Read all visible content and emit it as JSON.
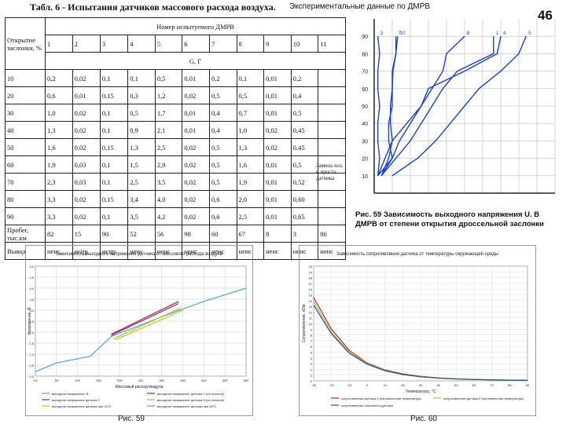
{
  "table_title": "Табл. 6 - Испытания датчиков массового расхода воздуха.",
  "page_number": "46",
  "dmrv_header": "Номер испытуемого ДМРВ",
  "opening_header": "Открытие заслонки, %",
  "g_header": "G, Г",
  "sensor_numbers": [
    "1",
    "2",
    "3",
    "4",
    "5",
    "6",
    "7",
    "8",
    "9",
    "10",
    "11"
  ],
  "rows": [
    {
      "open": "10",
      "v": [
        "0,2",
        "0,02",
        "0,1",
        "0,1",
        "0,5",
        "0,01",
        "0,2",
        "0,1",
        "0,01",
        "0,2",
        ""
      ]
    },
    {
      "open": "20",
      "v": [
        "0,6",
        "0,01",
        "0,15",
        "0,3",
        "1,2",
        "0,02",
        "0,5",
        "0,5",
        "0,01",
        "0,4",
        ""
      ]
    },
    {
      "open": "30",
      "v": [
        "1,0",
        "0,02",
        "0,1",
        "0,5",
        "1,7",
        "0,01",
        "0,4",
        "0,7",
        "0,01",
        "0,5",
        ""
      ]
    },
    {
      "open": "40",
      "v": [
        "1,3",
        "0,02",
        "0,1",
        "0,9",
        "2,1",
        "0,01",
        "0,4",
        "1,0",
        "0,02",
        "0,45",
        ""
      ]
    },
    {
      "open": "50",
      "v": [
        "1,6",
        "0,02",
        "0,15",
        "1,3",
        "2,5",
        "0,02",
        "0,5",
        "1,3",
        "0,02",
        "0,45",
        ""
      ]
    },
    {
      "open": "60",
      "v": [
        "1,9",
        "0,03",
        "0,1",
        "1,5",
        "2,9",
        "0,02",
        "0,5",
        "1,6",
        "0,01",
        "0,5",
        ""
      ]
    },
    {
      "open": "70",
      "v": [
        "2,3",
        "0,03",
        "0,1",
        "2,5",
        "3,5",
        "0,02",
        "0,5",
        "1,9",
        "0,01",
        "0,52",
        ""
      ]
    },
    {
      "open": "80",
      "v": [
        "3,3",
        "0,02",
        "0,15",
        "3,4",
        "4,0",
        "0,02",
        "0,6",
        "2,0",
        "0,01",
        "0,60",
        ""
      ]
    },
    {
      "open": "90",
      "v": [
        "3,3",
        "0,02",
        "0,1",
        "3,5",
        "4,2",
        "0,02",
        "0,6",
        "2,5",
        "0,01",
        "0,65",
        ""
      ]
    }
  ],
  "mileage_label": "Пробег, тыс.км",
  "mileage_values": [
    "82",
    "15",
    "90",
    "52",
    "56",
    "98",
    "60",
    "67",
    "8",
    "3",
    "86"
  ],
  "output_label": "Вывод",
  "output_values": [
    "неис",
    "испр",
    "испр",
    "неис",
    "неис",
    "неис",
    "неис",
    "неис",
    "неис",
    "неис",
    "неис"
  ],
  "side_note": "Замена хол. и проста датчика",
  "exp_title": "Экспериментальные данные по ДМРВ",
  "fig59_caption": "Рис. 59 Зависимость выходного напряжения U. В ДМРВ от степени открытия дроссельной заслонки",
  "fig_left_label": "Рис. 59",
  "fig_right_label": "Рис. 60",
  "chart_data": [
    {
      "type": "line",
      "title": "Экспериментальные данные по ДМРВ",
      "xlabel": "",
      "ylabel": "",
      "y_ticks": [
        10,
        20,
        30,
        40,
        50,
        60,
        70,
        80,
        90
      ],
      "ylim": [
        0,
        100
      ],
      "xlim": [
        0,
        5
      ],
      "series": [
        {
          "name": "1",
          "x": [
            0.2,
            0.6,
            1.0,
            1.3,
            1.6,
            1.9,
            2.3,
            3.3,
            3.3
          ],
          "y": [
            10,
            20,
            30,
            40,
            50,
            60,
            70,
            80,
            90
          ]
        },
        {
          "name": "3",
          "x": [
            0.1,
            0.15,
            0.1,
            0.1,
            0.15,
            0.1,
            0.1,
            0.15,
            0.1
          ],
          "y": [
            10,
            20,
            30,
            40,
            50,
            60,
            70,
            80,
            90
          ]
        },
        {
          "name": "4",
          "x": [
            0.1,
            0.3,
            0.5,
            0.9,
            1.3,
            1.5,
            2.5,
            3.4,
            3.5
          ],
          "y": [
            10,
            20,
            30,
            40,
            50,
            60,
            70,
            80,
            90
          ]
        },
        {
          "name": "5",
          "x": [
            0.5,
            1.2,
            1.7,
            2.1,
            2.5,
            2.9,
            3.5,
            4.0,
            4.2
          ],
          "y": [
            10,
            20,
            30,
            40,
            50,
            60,
            70,
            80,
            90
          ]
        },
        {
          "name": "7",
          "x": [
            0.2,
            0.5,
            0.4,
            0.4,
            0.5,
            0.5,
            0.5,
            0.6,
            0.6
          ],
          "y": [
            10,
            20,
            30,
            40,
            50,
            60,
            70,
            80,
            90
          ]
        },
        {
          "name": "8",
          "x": [
            0.1,
            0.5,
            0.7,
            1.0,
            1.3,
            1.6,
            1.9,
            2.0,
            2.5
          ],
          "y": [
            10,
            20,
            30,
            40,
            50,
            60,
            70,
            80,
            90
          ]
        },
        {
          "name": "10",
          "x": [
            0.2,
            0.4,
            0.5,
            0.45,
            0.45,
            0.5,
            0.52,
            0.6,
            0.65
          ],
          "y": [
            10,
            20,
            30,
            40,
            50,
            60,
            70,
            80,
            90
          ]
        }
      ]
    },
    {
      "type": "line",
      "title": "Зависимость выходного напряжения датчика от массового расхода воздуха",
      "xlabel": "Массовый расход воздуха",
      "ylabel": "Напряжение, В",
      "x_ticks": [
        "0,0",
        "50",
        "100",
        "150",
        "200",
        "250",
        "300",
        "350",
        "400",
        "450",
        "500"
      ],
      "y_ticks": [
        "0,0",
        "0,5",
        "1,0",
        "1,5",
        "2,0",
        "2,5",
        "3,0",
        "3,5",
        "4,0",
        "4,5",
        "5,0"
      ],
      "xlim": [
        0,
        500
      ],
      "ylim": [
        0,
        5
      ],
      "series": [
        {
          "name": "Зависимость 1",
          "x": [
            0,
            50,
            130,
            180,
            300,
            400,
            450,
            500
          ],
          "y": [
            0.2,
            0.6,
            0.9,
            1.8,
            2.7,
            3.4,
            3.7,
            4.0
          ]
        },
        {
          "name": "Зависимость 2",
          "x": [
            180,
            340
          ],
          "y": [
            1.9,
            3.4
          ]
        },
        {
          "name": "Зависимость 3",
          "x": [
            180,
            340
          ],
          "y": [
            1.85,
            3.3
          ]
        },
        {
          "name": "Зависимость 4",
          "x": [
            185,
            345
          ],
          "y": [
            1.7,
            3.1
          ]
        },
        {
          "name": "Зависимость 5",
          "x": [
            190,
            350
          ],
          "y": [
            1.65,
            3.0
          ]
        }
      ],
      "legend": [
        "выходное напряжение, В",
        "выходное напряжение датчика 1 (по эталону)",
        "выходное напряжение датчика 2",
        "выходное напряжение датчика 3 (по эталону)",
        "выходное напряжение датчика при 20°С",
        "выходное напряжение датчика при 80°С"
      ]
    },
    {
      "type": "line",
      "title": "Зависимость сопротивления датчика от температуры окружающей среды",
      "xlabel": "Температура, °С",
      "ylabel": "Сопротивление, кОм",
      "x_ticks": [
        "-30",
        "-20",
        "-10",
        "0",
        "10",
        "20",
        "30",
        "40",
        "50",
        "60",
        "70",
        "80",
        "90"
      ],
      "y_ticks": [
        "0",
        "1",
        "2",
        "3",
        "4",
        "5",
        "6",
        "7",
        "8",
        "9",
        "10",
        "11",
        "12",
        "13",
        "14",
        "15",
        "16",
        "17",
        "18",
        "19",
        "20"
      ],
      "xlim": [
        -30,
        90
      ],
      "ylim": [
        0,
        20
      ],
      "series": [
        {
          "name": "Датчик 1",
          "x": [
            -30,
            -20,
            -10,
            0,
            10,
            20,
            30,
            40,
            50,
            60,
            70,
            80,
            90
          ],
          "y": [
            14.5,
            9.0,
            5.3,
            3.1,
            1.9,
            1.2,
            0.8,
            0.5,
            0.35,
            0.25,
            0.18,
            0.13,
            0.1
          ]
        },
        {
          "name": "Датчик 2",
          "x": [
            -30,
            -20,
            -10,
            0,
            10,
            20,
            30,
            40,
            50,
            60,
            70,
            80,
            90
          ],
          "y": [
            13.8,
            8.5,
            5.0,
            3.0,
            1.8,
            1.1,
            0.75,
            0.5,
            0.33,
            0.24,
            0.17,
            0.12,
            0.09
          ]
        },
        {
          "name": "Датчик 3",
          "x": [
            -30,
            -20,
            -10,
            0,
            10,
            20,
            30,
            40,
            50,
            60,
            70,
            80,
            90
          ],
          "y": [
            13.2,
            8.2,
            4.8,
            2.9,
            1.75,
            1.1,
            0.7,
            0.48,
            0.32,
            0.23,
            0.16,
            0.12,
            0.09
          ]
        }
      ],
      "legend": [
        "сопротивление датчика 1 при изменении температуры",
        "сопротивление датчика 2 при изменении температуры",
        "сопротивление эталонного датчика"
      ]
    }
  ]
}
